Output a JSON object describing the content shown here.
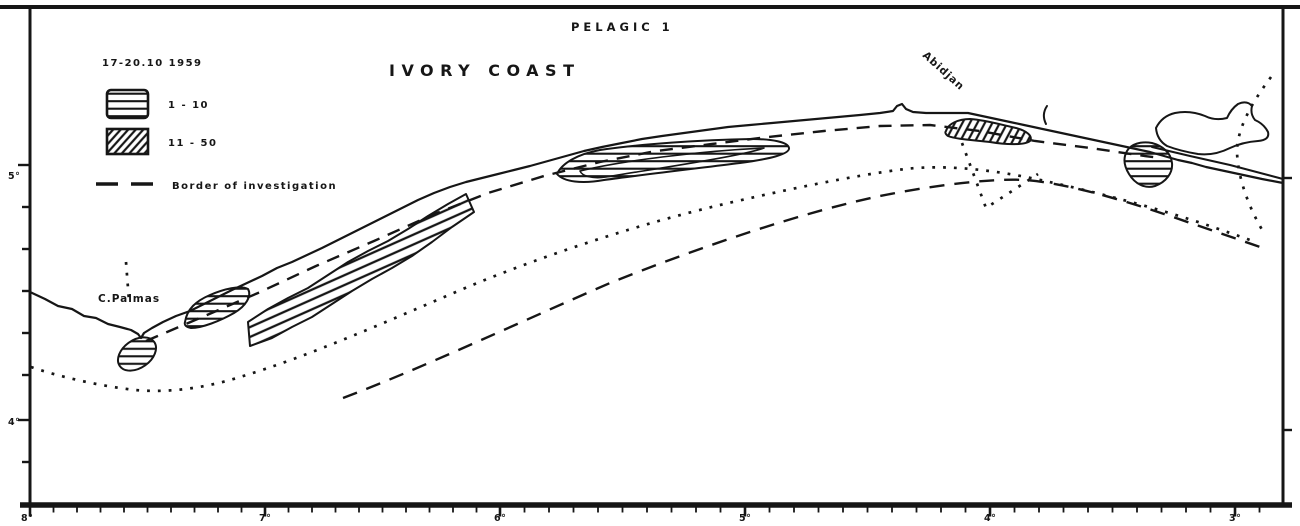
{
  "header": {
    "title": "PELAGIC 1"
  },
  "map": {
    "region_title": "IVORY COAST",
    "survey_dates": "17-20.10 1959"
  },
  "places": {
    "abidjan": "Abidjan",
    "c_palmas": "C.Palmas"
  },
  "legend": {
    "items": [
      {
        "label": "1 - 10",
        "swatch": "horizontal-hatch"
      },
      {
        "label": "11 - 50",
        "swatch": "diagonal-hatch"
      },
      {
        "label": "Border of investigation",
        "swatch": "dashed-line"
      }
    ]
  },
  "axes": {
    "bottom_labels": [
      "8°",
      "7°",
      "6°",
      "5°",
      "4°",
      "3°"
    ],
    "left_labels": [
      "5°",
      "4°"
    ]
  },
  "features": {
    "density_areas": [
      {
        "area": "south of Cape Palmas",
        "class": "1 - 10"
      },
      {
        "area": "coast east of Cape Palmas",
        "class": "1 - 10"
      },
      {
        "area": "inshore band between 7°W and 6°30'W",
        "class": "11 - 50"
      },
      {
        "area": "inshore strip between 6°W and 5°30'W",
        "class": "1 - 10"
      },
      {
        "area": "off Abidjan",
        "class": "11 - 50"
      },
      {
        "area": "east of Abidjan",
        "class": "1 - 10"
      }
    ],
    "line_types": [
      "coastline (solid)",
      "border of investigation (dashed)",
      "survey track (dotted)"
    ]
  },
  "colors": {
    "ink": "#161616",
    "paper": "#ffffff"
  }
}
